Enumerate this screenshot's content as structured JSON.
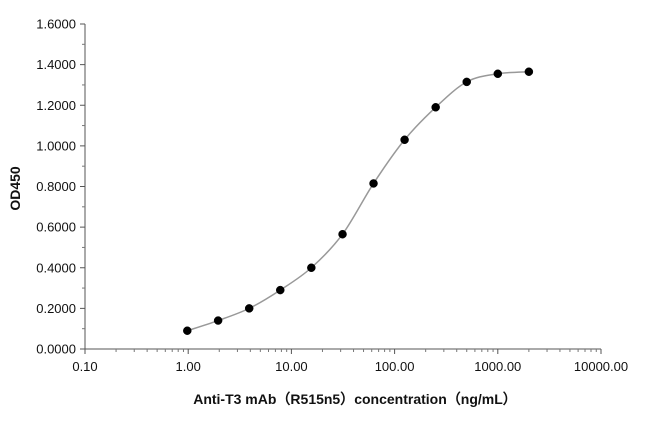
{
  "chart_data": {
    "type": "scatter",
    "xlabel": "Anti-T3 mAb（R515n5）concentration（ng/mL）",
    "ylabel": "OD450",
    "x_scale": "log",
    "xlim": [
      0.1,
      10000
    ],
    "ylim": [
      0,
      1.6
    ],
    "grid": false,
    "x_ticks": [
      0.1,
      1,
      10,
      100,
      1000,
      10000
    ],
    "x_tick_labels": [
      "0.10",
      "1.00",
      "10.00",
      "100.00",
      "1000.00",
      "10000.00"
    ],
    "y_ticks": [
      0,
      0.2,
      0.4,
      0.6,
      0.8,
      1.0,
      1.2,
      1.4,
      1.6
    ],
    "y_tick_labels": [
      "0.0000",
      "0.2000",
      "0.4000",
      "0.6000",
      "0.8000",
      "1.0000",
      "1.2000",
      "1.4000",
      "1.6000"
    ],
    "series": [
      {
        "x": [
          0.98,
          1.95,
          3.9,
          7.8,
          15.6,
          31.3,
          62.5,
          125,
          250,
          500,
          1000,
          2000
        ],
        "y": [
          0.09,
          0.14,
          0.2,
          0.29,
          0.4,
          0.565,
          0.815,
          1.03,
          1.19,
          1.315,
          1.355,
          1.365
        ],
        "marker_color": "#000000",
        "line_color": "#999999",
        "fit": "4PL curve"
      }
    ]
  }
}
